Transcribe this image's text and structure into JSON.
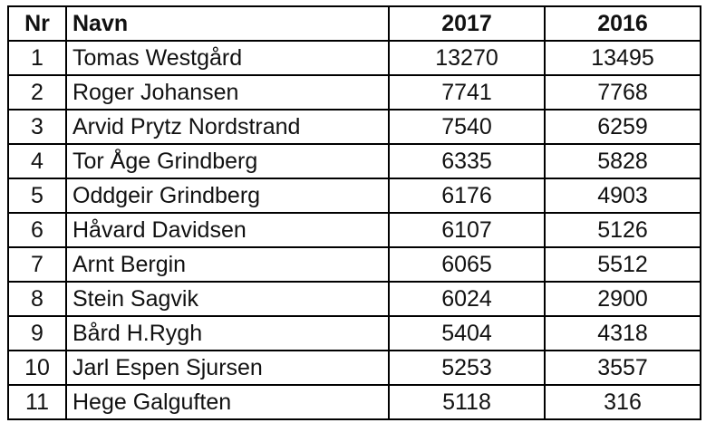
{
  "table": {
    "header": [
      "Nr",
      "Navn",
      "2017",
      "2016"
    ],
    "rows": [
      [
        1,
        "Tomas Westgård",
        13270,
        13495
      ],
      [
        2,
        "Roger Johansen",
        7741,
        7768
      ],
      [
        3,
        "Arvid Prytz Nordstrand",
        7540,
        6259
      ],
      [
        4,
        "Tor Åge Grindberg",
        6335,
        5828
      ],
      [
        5,
        "Oddgeir Grindberg",
        6176,
        4903
      ],
      [
        6,
        "Håvard Davidsen",
        6107,
        5126
      ],
      [
        7,
        "Arnt Bergin",
        6065,
        5512
      ],
      [
        8,
        "Stein Sagvik",
        6024,
        2900
      ],
      [
        9,
        "Bård H.Rygh",
        5404,
        4318
      ],
      [
        10,
        "Jarl Espen Sjursen",
        5253,
        3557
      ],
      [
        11,
        "Hege Galguften",
        5118,
        316
      ]
    ]
  }
}
